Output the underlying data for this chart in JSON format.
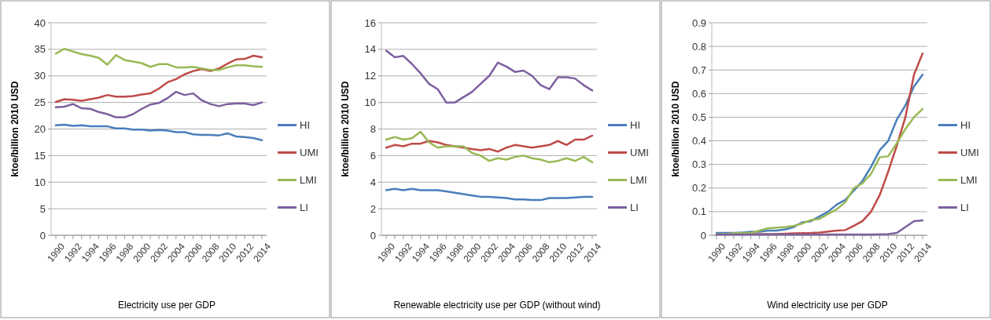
{
  "chart_data": [
    {
      "type": "line",
      "xlabel": "Electricity use per GDP",
      "ylabel": "ktoe/billion 2010 USD",
      "categories": [
        "1990",
        null,
        "1992",
        null,
        "1994",
        null,
        "1996",
        null,
        "1998",
        null,
        "2000",
        null,
        "2002",
        null,
        "2004",
        null,
        "2006",
        null,
        "2008",
        null,
        "2010",
        null,
        "2012",
        null,
        "2014"
      ],
      "ylim": [
        0,
        40
      ],
      "yticks": [
        0,
        5,
        10,
        15,
        20,
        25,
        30,
        35,
        40
      ],
      "grid": "y",
      "legend": "right",
      "series": [
        {
          "name": "HI",
          "color": "#4a7ebb",
          "values": [
            20.7,
            20.8,
            20.6,
            20.7,
            20.5,
            20.5,
            20.5,
            20.1,
            20.1,
            19.9,
            19.9,
            19.7,
            19.8,
            19.7,
            19.4,
            19.4,
            19.0,
            18.9,
            18.9,
            18.8,
            19.2,
            18.6,
            18.5,
            18.3,
            17.9
          ]
        },
        {
          "name": "UMI",
          "color": "#be4b48",
          "values": [
            25.1,
            25.6,
            25.5,
            25.3,
            25.6,
            25.9,
            26.4,
            26.1,
            26.1,
            26.2,
            26.5,
            26.7,
            27.6,
            28.8,
            29.4,
            30.3,
            30.9,
            31.3,
            30.9,
            31.4,
            32.3,
            33.1,
            33.2,
            33.8,
            33.5
          ]
        },
        {
          "name": "LMI",
          "color": "#98b954",
          "values": [
            34.2,
            35.1,
            34.6,
            34.1,
            33.8,
            33.4,
            32.1,
            33.9,
            33.0,
            32.7,
            32.4,
            31.7,
            32.2,
            32.2,
            31.6,
            31.6,
            31.7,
            31.4,
            31.1,
            31.1,
            31.6,
            32.0,
            32.0,
            31.8,
            31.7
          ]
        },
        {
          "name": "LI",
          "color": "#7d60a0",
          "values": [
            24.1,
            24.2,
            24.7,
            23.9,
            23.8,
            23.2,
            22.8,
            22.2,
            22.2,
            22.8,
            23.8,
            24.6,
            24.9,
            25.8,
            27.0,
            26.4,
            26.7,
            25.4,
            24.7,
            24.3,
            24.7,
            24.8,
            24.8,
            24.5,
            25.0
          ]
        }
      ]
    },
    {
      "type": "line",
      "xlabel": "Renewable electricity use per GDP (without wind)",
      "ylabel": "ktoe/billion 2010 USD",
      "categories": [
        "1990",
        null,
        "1992",
        null,
        "1994",
        null,
        "1996",
        null,
        "1998",
        null,
        "2000",
        null,
        "2002",
        null,
        "2004",
        null,
        "2006",
        null,
        "2008",
        null,
        "2010",
        null,
        "2012",
        null,
        "2014"
      ],
      "ylim": [
        0,
        16
      ],
      "yticks": [
        0,
        2,
        4,
        6,
        8,
        10,
        12,
        14,
        16
      ],
      "grid": "y",
      "legend": "right",
      "series": [
        {
          "name": "HI",
          "color": "#4a7ebb",
          "values": [
            3.4,
            3.5,
            3.4,
            3.5,
            3.4,
            3.4,
            3.4,
            3.3,
            3.2,
            3.1,
            3.0,
            2.9,
            2.9,
            2.85,
            2.8,
            2.7,
            2.7,
            2.65,
            2.65,
            2.8,
            2.8,
            2.8,
            2.85,
            2.9,
            2.9
          ]
        },
        {
          "name": "UMI",
          "color": "#be4b48",
          "values": [
            6.6,
            6.8,
            6.7,
            6.9,
            6.9,
            7.1,
            7.0,
            6.8,
            6.7,
            6.6,
            6.5,
            6.4,
            6.5,
            6.3,
            6.6,
            6.8,
            6.7,
            6.6,
            6.7,
            6.8,
            7.1,
            6.8,
            7.2,
            7.2,
            7.5
          ]
        },
        {
          "name": "LMI",
          "color": "#98b954",
          "values": [
            7.2,
            7.4,
            7.2,
            7.3,
            7.8,
            7.0,
            6.6,
            6.7,
            6.7,
            6.7,
            6.2,
            6.0,
            5.6,
            5.8,
            5.7,
            5.9,
            6.0,
            5.8,
            5.7,
            5.5,
            5.6,
            5.8,
            5.6,
            5.9,
            5.5
          ]
        },
        {
          "name": "LI",
          "color": "#7d60a0",
          "values": [
            13.9,
            13.4,
            13.5,
            12.9,
            12.2,
            11.4,
            11.0,
            10.0,
            10.0,
            10.4,
            10.8,
            11.4,
            12.0,
            13.0,
            12.7,
            12.3,
            12.4,
            12.0,
            11.3,
            11.0,
            11.9,
            11.9,
            11.8,
            11.3,
            10.9
          ]
        }
      ]
    },
    {
      "type": "line",
      "xlabel": "Wind electricity use per GDP",
      "ylabel": "ktoe/billion 2010 USD",
      "categories": [
        "1990",
        null,
        "1992",
        null,
        "1994",
        null,
        "1996",
        null,
        "1998",
        null,
        "2000",
        null,
        "2002",
        null,
        "2004",
        null,
        "2006",
        null,
        "2008",
        null,
        "2010",
        null,
        "2012",
        null,
        "2014"
      ],
      "ylim": [
        0,
        0.9
      ],
      "yticks": [
        0,
        0.1,
        0.2,
        0.3,
        0.4,
        0.5,
        0.6,
        0.7,
        0.8,
        0.9
      ],
      "grid": "y",
      "legend": "right",
      "series": [
        {
          "name": "HI",
          "color": "#4a7ebb",
          "values": [
            0.01,
            0.01,
            0.01,
            0.012,
            0.015,
            0.015,
            0.02,
            0.02,
            0.025,
            0.035,
            0.055,
            0.06,
            0.08,
            0.1,
            0.13,
            0.15,
            0.19,
            0.23,
            0.29,
            0.36,
            0.4,
            0.49,
            0.55,
            0.63,
            0.68
          ]
        },
        {
          "name": "UMI",
          "color": "#be4b48",
          "values": [
            null,
            null,
            null,
            0.005,
            0.005,
            0.005,
            0.005,
            0.005,
            0.007,
            0.008,
            0.009,
            0.01,
            0.012,
            0.016,
            0.02,
            0.022,
            0.04,
            0.06,
            0.1,
            0.17,
            0.27,
            0.38,
            0.5,
            0.68,
            0.77
          ]
        },
        {
          "name": "LMI",
          "color": "#98b954",
          "values": [
            0.005,
            0.005,
            0.008,
            0.01,
            0.01,
            0.02,
            0.03,
            0.032,
            0.035,
            0.04,
            0.05,
            0.065,
            0.07,
            0.09,
            0.11,
            0.14,
            0.2,
            0.22,
            0.26,
            0.33,
            0.335,
            0.39,
            0.45,
            0.5,
            0.535
          ]
        },
        {
          "name": "LI",
          "color": "#7d60a0",
          "values": [
            0.003,
            0.003,
            0.003,
            0.003,
            0.003,
            0.003,
            0.003,
            0.003,
            0.003,
            0.003,
            0.003,
            0.003,
            0.003,
            0.003,
            0.003,
            0.003,
            0.003,
            0.003,
            0.003,
            0.004,
            0.005,
            0.01,
            0.035,
            0.06,
            0.063
          ]
        }
      ]
    }
  ]
}
